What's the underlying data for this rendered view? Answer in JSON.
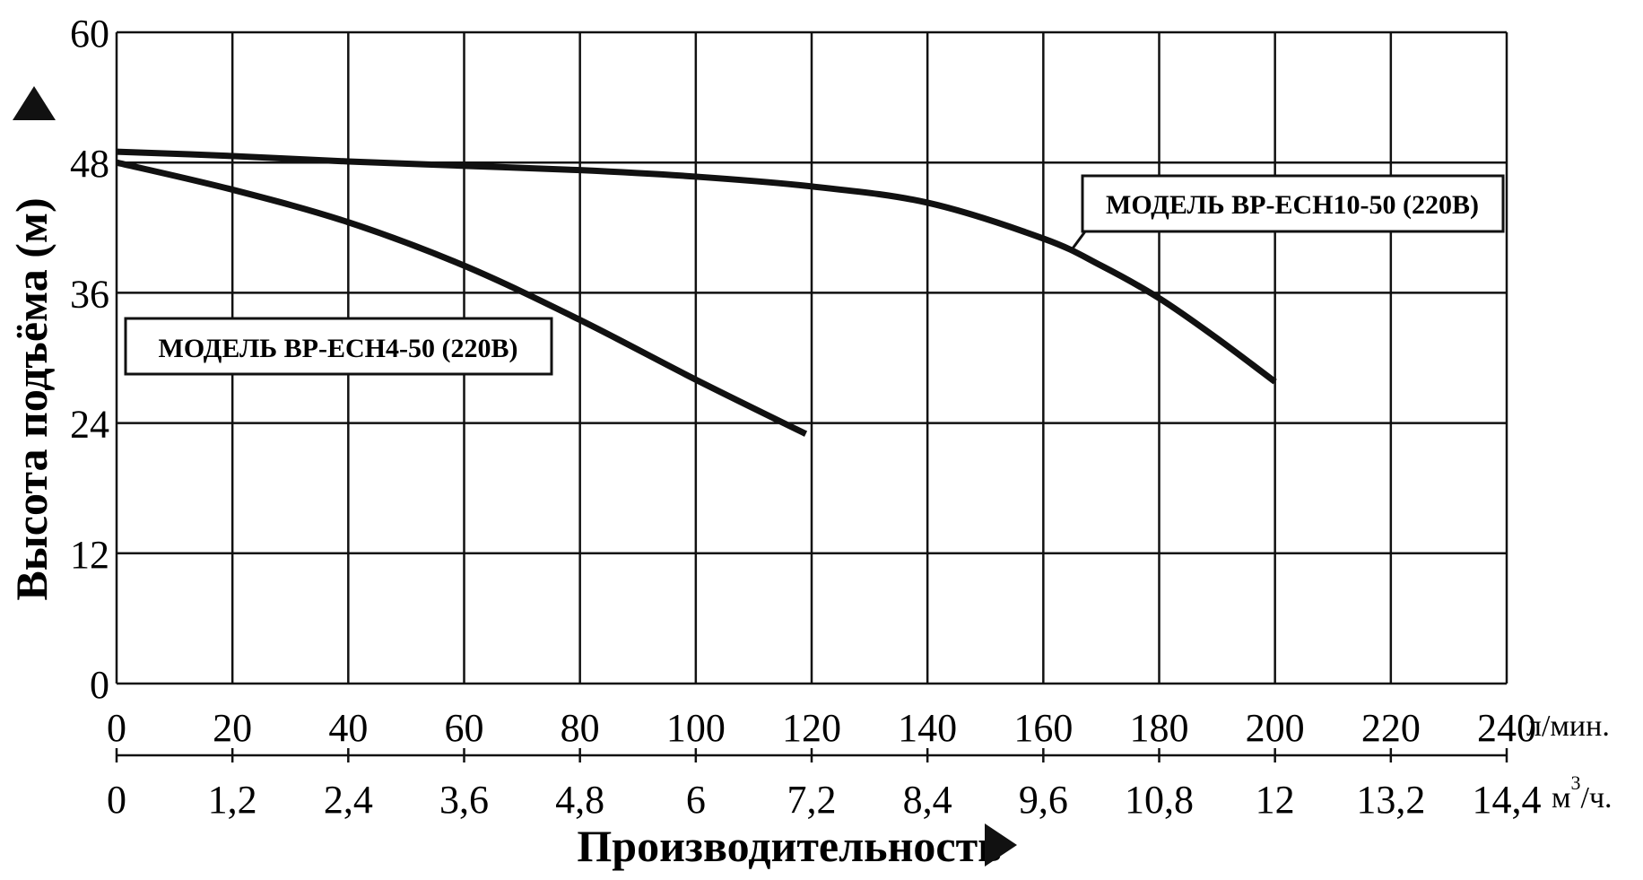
{
  "chart_data": {
    "type": "line",
    "xlabel": "Производительность",
    "ylabel": "Высота подъёма  (м)",
    "xlim": [
      0,
      240
    ],
    "ylim": [
      0,
      60
    ],
    "grid": true,
    "x_ticks": [
      "0",
      "20",
      "40",
      "60",
      "80",
      "100",
      "120",
      "140",
      "160",
      "180",
      "200",
      "220",
      "240"
    ],
    "x_unit": "л/мин.",
    "x_secondary_ticks": [
      "0",
      "1,2",
      "2,4",
      "3,6",
      "4,8",
      "6",
      "7,2",
      "8,4",
      "9,6",
      "10,8",
      "12",
      "13,2",
      "14,4"
    ],
    "x_secondary_unit_base": "м",
    "x_secondary_unit_sup": "3",
    "x_secondary_unit_rest": "/ч.",
    "y_ticks": [
      "0",
      "12",
      "24",
      "36",
      "48",
      "60"
    ],
    "series": [
      {
        "name": "МОДЕЛЬ BP-ECH4-50 (220B)",
        "points": [
          [
            0,
            48.0
          ],
          [
            20,
            45.5
          ],
          [
            40,
            42.5
          ],
          [
            60,
            38.5
          ],
          [
            80,
            33.5
          ],
          [
            100,
            28.0
          ],
          [
            119,
            23.0
          ]
        ]
      },
      {
        "name": "МОДЕЛЬ BP-ECH10-50 (220B)",
        "points": [
          [
            0,
            49.0
          ],
          [
            20,
            48.6
          ],
          [
            40,
            48.1
          ],
          [
            60,
            47.7
          ],
          [
            80,
            47.3
          ],
          [
            100,
            46.7
          ],
          [
            120,
            45.8
          ],
          [
            140,
            44.3
          ],
          [
            160,
            41.0
          ],
          [
            170,
            38.5
          ],
          [
            180,
            35.5
          ],
          [
            190,
            31.8
          ],
          [
            200,
            27.8
          ]
        ]
      }
    ]
  }
}
